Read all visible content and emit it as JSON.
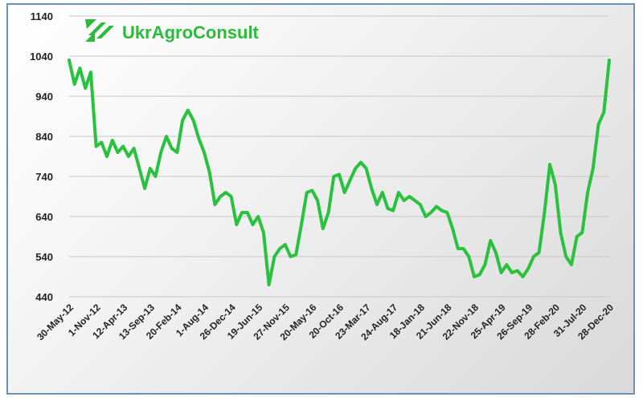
{
  "logo": {
    "text": "UkrAgroConsult",
    "icon": "ukragroconsult-logo-icon"
  },
  "colors": {
    "line": "#2ac13e",
    "logo": "#2dbb3a",
    "frame": "#6d8fb8",
    "grid": "#c8c8c8"
  },
  "chart_data": {
    "type": "line",
    "title": "",
    "xlabel": "",
    "ylabel": "",
    "ylim": [
      440,
      1140
    ],
    "yticks": [
      440,
      540,
      640,
      740,
      840,
      940,
      1040,
      1140
    ],
    "grid": true,
    "legend": "none",
    "xticks": [
      "30-May-12",
      "1-Nov-12",
      "12-Apr-13",
      "13-Sep-13",
      "20-Feb-14",
      "1-Aug-14",
      "26-Dec-14",
      "19-Jun-15",
      "27-Nov-15",
      "20-May-16",
      "20-Oct-16",
      "23-Mar-17",
      "24-Aug-17",
      "18-Jan-18",
      "21-Jun-18",
      "22-Nov-18",
      "25-Apr-19",
      "26-Sep-19",
      "28-Feb-20",
      "31-Jul-20",
      "28-Dec-20"
    ],
    "series": [
      {
        "values": [
          {
            "x": "30-May-12",
            "y": 1030
          },
          {
            "x": "Jul-12",
            "y": 970
          },
          {
            "x": "Aug-12",
            "y": 1010
          },
          {
            "x": "Sep-12",
            "y": 960
          },
          {
            "x": "Oct-12",
            "y": 1000
          },
          {
            "x": "1-Nov-12",
            "y": 815
          },
          {
            "x": "Dec-12",
            "y": 825
          },
          {
            "x": "Jan-13",
            "y": 790
          },
          {
            "x": "Feb-13",
            "y": 830
          },
          {
            "x": "Mar-13",
            "y": 800
          },
          {
            "x": "12-Apr-13",
            "y": 815
          },
          {
            "x": "May-13",
            "y": 790
          },
          {
            "x": "Jun-13",
            "y": 810
          },
          {
            "x": "Jul-13",
            "y": 760
          },
          {
            "x": "Aug-13",
            "y": 710
          },
          {
            "x": "13-Sep-13",
            "y": 760
          },
          {
            "x": "Oct-13",
            "y": 740
          },
          {
            "x": "Nov-13",
            "y": 800
          },
          {
            "x": "Dec-13",
            "y": 840
          },
          {
            "x": "Jan-14",
            "y": 810
          },
          {
            "x": "20-Feb-14",
            "y": 800
          },
          {
            "x": "Mar-14",
            "y": 880
          },
          {
            "x": "Apr-14",
            "y": 905
          },
          {
            "x": "May-14",
            "y": 880
          },
          {
            "x": "Jun-14",
            "y": 835
          },
          {
            "x": "1-Aug-14",
            "y": 800
          },
          {
            "x": "Sep-14",
            "y": 750
          },
          {
            "x": "Oct-14",
            "y": 670
          },
          {
            "x": "Nov-14",
            "y": 690
          },
          {
            "x": "Dec-14",
            "y": 700
          },
          {
            "x": "26-Dec-14",
            "y": 690
          },
          {
            "x": "Feb-15",
            "y": 620
          },
          {
            "x": "Mar-15",
            "y": 650
          },
          {
            "x": "Apr-15",
            "y": 650
          },
          {
            "x": "May-15",
            "y": 620
          },
          {
            "x": "19-Jun-15",
            "y": 640
          },
          {
            "x": "Aug-15",
            "y": 600
          },
          {
            "x": "Sep-15",
            "y": 470
          },
          {
            "x": "Oct-15",
            "y": 540
          },
          {
            "x": "Nov-15",
            "y": 560
          },
          {
            "x": "27-Nov-15",
            "y": 570
          },
          {
            "x": "Jan-16",
            "y": 540
          },
          {
            "x": "Feb-16",
            "y": 545
          },
          {
            "x": "Mar-16",
            "y": 620
          },
          {
            "x": "Apr-16",
            "y": 700
          },
          {
            "x": "20-May-16",
            "y": 705
          },
          {
            "x": "Jul-16",
            "y": 680
          },
          {
            "x": "Aug-16",
            "y": 610
          },
          {
            "x": "Sep-16",
            "y": 650
          },
          {
            "x": "Oct-16",
            "y": 740
          },
          {
            "x": "20-Oct-16",
            "y": 745
          },
          {
            "x": "Dec-16",
            "y": 700
          },
          {
            "x": "Jan-17",
            "y": 730
          },
          {
            "x": "Feb-17",
            "y": 760
          },
          {
            "x": "Mar-17",
            "y": 775
          },
          {
            "x": "23-Mar-17",
            "y": 760
          },
          {
            "x": "May-17",
            "y": 710
          },
          {
            "x": "Jun-17",
            "y": 670
          },
          {
            "x": "Jul-17",
            "y": 700
          },
          {
            "x": "Aug-17",
            "y": 660
          },
          {
            "x": "24-Aug-17",
            "y": 655
          },
          {
            "x": "Oct-17",
            "y": 700
          },
          {
            "x": "Nov-17",
            "y": 680
          },
          {
            "x": "Dec-17",
            "y": 690
          },
          {
            "x": "Jan-18",
            "y": 680
          },
          {
            "x": "18-Jan-18",
            "y": 670
          },
          {
            "x": "Mar-18",
            "y": 640
          },
          {
            "x": "Apr-18",
            "y": 650
          },
          {
            "x": "May-18",
            "y": 665
          },
          {
            "x": "Jun-18",
            "y": 655
          },
          {
            "x": "21-Jun-18",
            "y": 650
          },
          {
            "x": "Aug-18",
            "y": 610
          },
          {
            "x": "Sep-18",
            "y": 560
          },
          {
            "x": "Oct-18",
            "y": 560
          },
          {
            "x": "Nov-18",
            "y": 540
          },
          {
            "x": "22-Nov-18",
            "y": 490
          },
          {
            "x": "Jan-19",
            "y": 495
          },
          {
            "x": "Feb-19",
            "y": 520
          },
          {
            "x": "Mar-19",
            "y": 580
          },
          {
            "x": "Apr-19",
            "y": 550
          },
          {
            "x": "25-Apr-19",
            "y": 500
          },
          {
            "x": "Jun-19",
            "y": 520
          },
          {
            "x": "Jul-19",
            "y": 500
          },
          {
            "x": "Aug-19",
            "y": 505
          },
          {
            "x": "Sep-19",
            "y": 490
          },
          {
            "x": "26-Sep-19",
            "y": 510
          },
          {
            "x": "Nov-19",
            "y": 540
          },
          {
            "x": "Dec-19",
            "y": 550
          },
          {
            "x": "Jan-20",
            "y": 650
          },
          {
            "x": "Feb-20",
            "y": 770
          },
          {
            "x": "28-Feb-20",
            "y": 720
          },
          {
            "x": "Apr-20",
            "y": 600
          },
          {
            "x": "May-20",
            "y": 540
          },
          {
            "x": "Jun-20",
            "y": 520
          },
          {
            "x": "Jul-20",
            "y": 590
          },
          {
            "x": "31-Jul-20",
            "y": 600
          },
          {
            "x": "Sep-20",
            "y": 700
          },
          {
            "x": "Oct-20",
            "y": 760
          },
          {
            "x": "Nov-20",
            "y": 870
          },
          {
            "x": "Dec-20",
            "y": 900
          },
          {
            "x": "28-Dec-20",
            "y": 1030
          }
        ]
      }
    ]
  }
}
